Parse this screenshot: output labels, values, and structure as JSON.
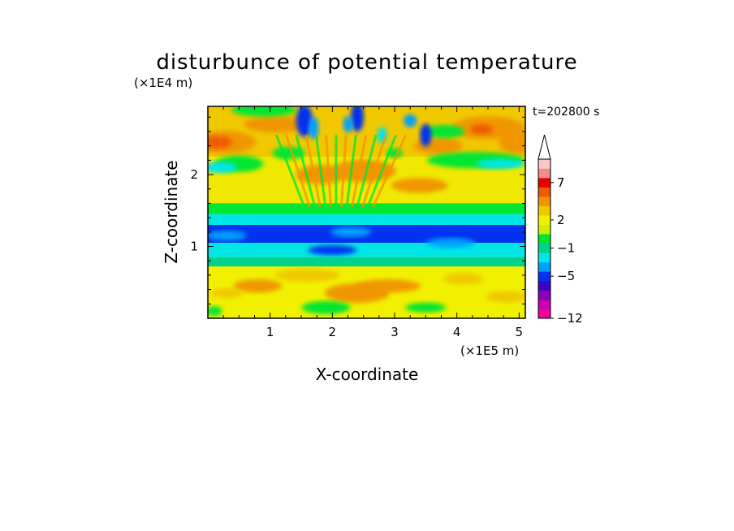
{
  "chart_data": {
    "type": "heatmap",
    "title": "disturbunce of potential temperature",
    "xlabel": "X-coordinate",
    "ylabel": "Z-coordinate",
    "x_unit": "(×1E5 m)",
    "y_unit": "(×1E4 m)",
    "time_label": "t=202800 s",
    "xlim": [
      0,
      5.1
    ],
    "ylim": [
      0,
      2.95
    ],
    "x_ticks": [
      "1",
      "2",
      "3",
      "4",
      "5"
    ],
    "y_ticks": [
      "1",
      "2"
    ],
    "colorbar": {
      "colors": [
        "#f000a0",
        "#c800b4",
        "#8c00b4",
        "#3c00c8",
        "#0032f0",
        "#00a0ff",
        "#00e6e6",
        "#00d28c",
        "#00e632",
        "#c8f000",
        "#f0f000",
        "#f0c800",
        "#f09600",
        "#f05a00",
        "#e60000",
        "#f08c8c",
        "#f8c8c8"
      ],
      "labels": [
        {
          "text": "7",
          "level": 7
        },
        {
          "text": "2",
          "level": 2
        },
        {
          "text": "−1",
          "level": -1
        },
        {
          "text": "−5",
          "level": -5
        },
        {
          "text": "−12",
          "level": -12
        }
      ],
      "extend": "max"
    },
    "bands": [
      {
        "z_from": 2.2,
        "z_to": 2.95,
        "level": "warm (orange/yellow) with blue cells near top center",
        "approx_value": 2
      },
      {
        "z_from": 1.55,
        "z_to": 2.2,
        "level": "warm wave pattern, yellow/orange, fan of rays from x≈1.5–2.7",
        "approx_value": 2
      },
      {
        "z_from": 1.1,
        "z_to": 1.55,
        "level": "cold layer (dark blue / cyan)",
        "approx_value": -5
      },
      {
        "z_from": 0.75,
        "z_to": 1.1,
        "level": "cyan / light blue",
        "approx_value": -1
      },
      {
        "z_from": 0.0,
        "z_to": 0.75,
        "level": "yellow / orange warm layer",
        "approx_value": 2
      }
    ]
  }
}
